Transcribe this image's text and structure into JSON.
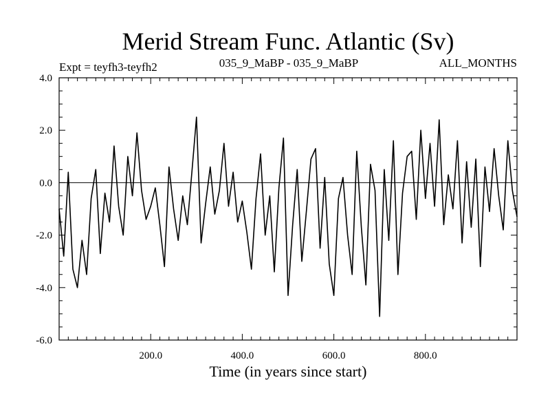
{
  "chart_data": {
    "type": "line",
    "title": "Merid Stream Func. Atlantic (Sv)",
    "subtitle_left": "Expt = teyfh3-teyfh2",
    "subtitle_center": "035_9_MaBP - 035_9_MaBP",
    "subtitle_right": "ALL_MONTHS",
    "xlabel": "Time (in years since start)",
    "ylabel": "",
    "xlim": [
      0,
      1000
    ],
    "ylim": [
      -6,
      4
    ],
    "xticks": [
      200,
      400,
      600,
      800
    ],
    "xtick_labels": [
      "200.0",
      "400.0",
      "600.0",
      "800.0"
    ],
    "yticks": [
      4,
      2,
      0,
      -2,
      -4,
      -6
    ],
    "ytick_labels": [
      "4.0",
      "2.0",
      "0.0",
      "-2.0",
      "-4.0",
      "-6.0"
    ],
    "zero_line": true,
    "series": [
      {
        "name": "Merid Stream Func. Atlantic",
        "color": "#000000",
        "x": [
          0,
          10,
          20,
          30,
          40,
          50,
          60,
          70,
          80,
          90,
          100,
          110,
          120,
          130,
          140,
          150,
          160,
          170,
          180,
          190,
          200,
          210,
          220,
          230,
          240,
          250,
          260,
          270,
          280,
          290,
          300,
          310,
          320,
          330,
          340,
          350,
          360,
          370,
          380,
          390,
          400,
          410,
          420,
          430,
          440,
          450,
          460,
          470,
          480,
          490,
          500,
          510,
          520,
          530,
          540,
          550,
          560,
          570,
          580,
          590,
          600,
          610,
          620,
          630,
          640,
          650,
          660,
          670,
          680,
          690,
          700,
          710,
          720,
          730,
          740,
          750,
          760,
          770,
          780,
          790,
          800,
          810,
          820,
          830,
          840,
          850,
          860,
          870,
          880,
          890,
          900,
          910,
          920,
          930,
          940,
          950,
          960,
          970,
          980,
          990,
          1000
        ],
        "y": [
          -1.0,
          -2.8,
          0.4,
          -3.3,
          -4.0,
          -2.2,
          -3.5,
          -0.6,
          0.5,
          -2.7,
          -0.4,
          -1.5,
          1.4,
          -0.9,
          -2.0,
          1.0,
          -0.5,
          1.9,
          -0.3,
          -1.4,
          -0.9,
          -0.2,
          -1.6,
          -3.2,
          0.6,
          -1.0,
          -2.2,
          -0.5,
          -1.6,
          0.4,
          2.5,
          -2.3,
          -0.8,
          0.6,
          -1.2,
          -0.3,
          1.5,
          -0.9,
          0.4,
          -1.5,
          -0.7,
          -1.9,
          -3.3,
          -0.6,
          1.1,
          -2.0,
          -0.5,
          -3.4,
          -0.2,
          1.7,
          -4.3,
          -1.6,
          0.5,
          -3.0,
          -1.1,
          0.9,
          1.3,
          -2.5,
          0.2,
          -3.1,
          -4.3,
          -0.6,
          0.2,
          -2.0,
          -3.5,
          1.2,
          -1.7,
          -3.9,
          0.7,
          -0.3,
          -5.1,
          0.5,
          -2.2,
          1.6,
          -3.5,
          -0.4,
          1.0,
          1.2,
          -1.4,
          2.0,
          -0.6,
          1.5,
          -0.9,
          2.4,
          -1.6,
          0.3,
          -1.0,
          1.6,
          -2.3,
          0.8,
          -1.7,
          0.9,
          -3.2,
          0.6,
          -1.1,
          1.3,
          -0.5,
          -1.8,
          1.6,
          -0.3,
          -1.3
        ]
      }
    ]
  }
}
